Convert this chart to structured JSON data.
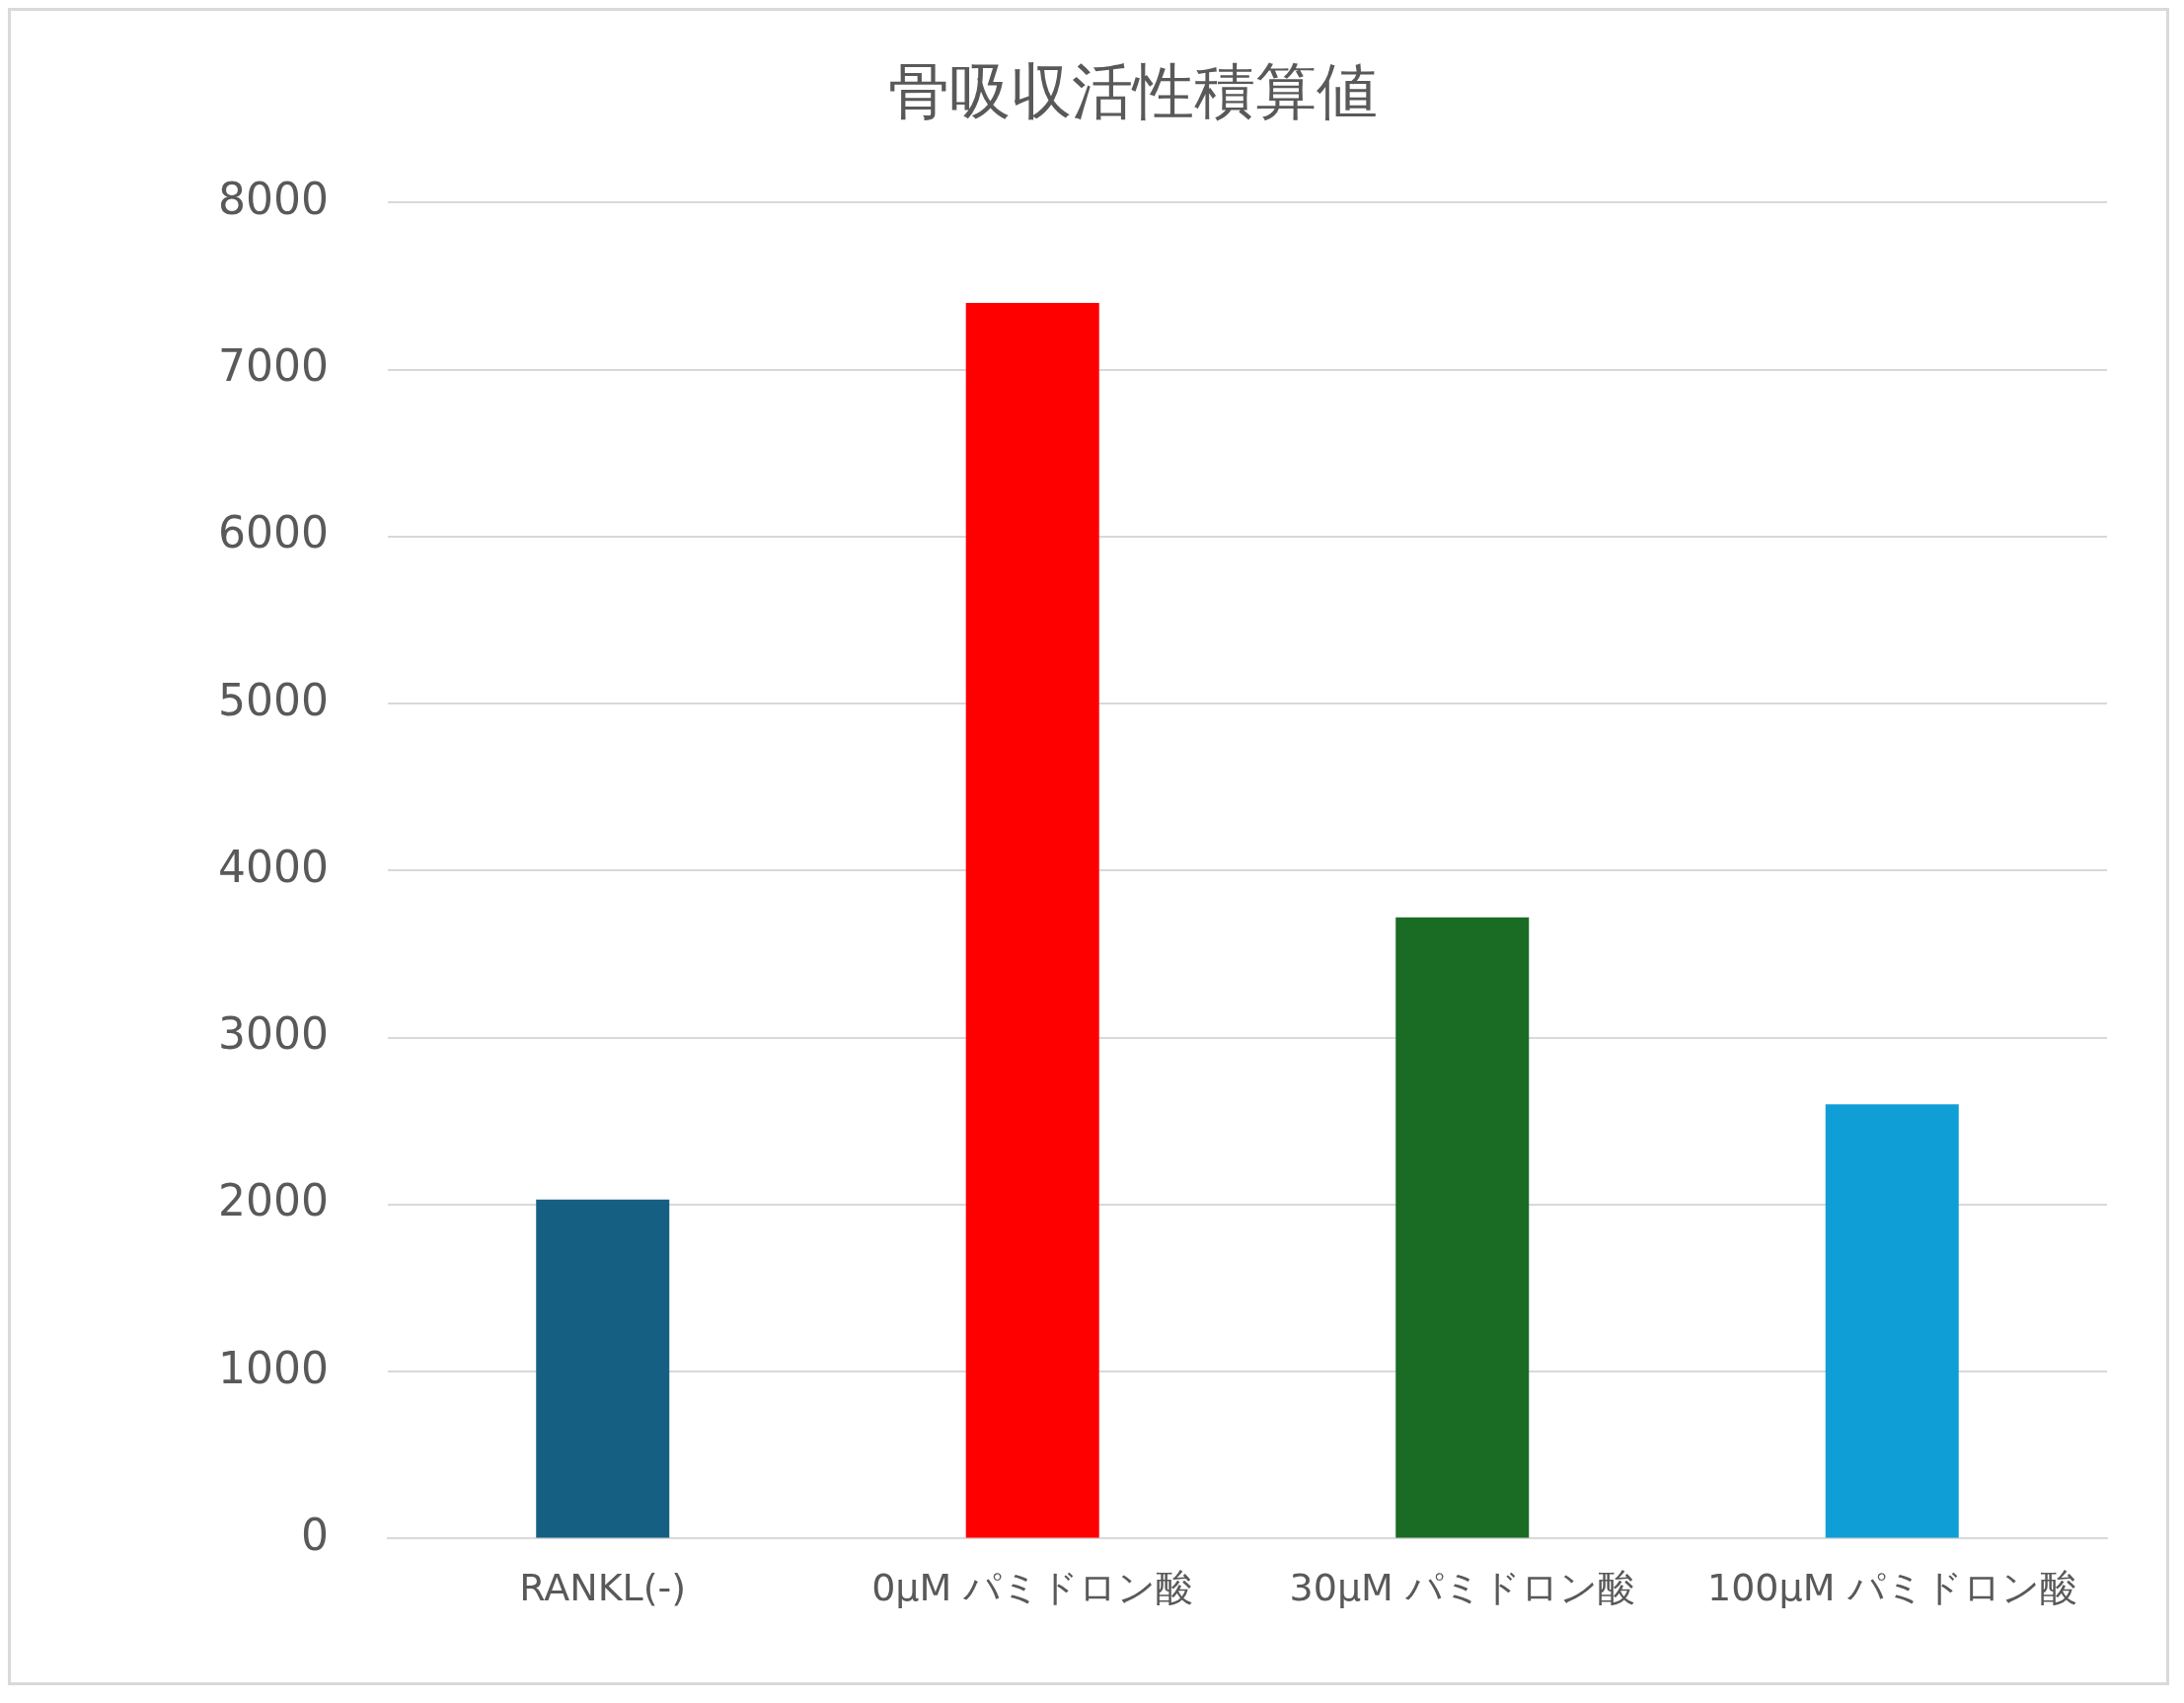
{
  "chart_data": {
    "type": "bar",
    "title": "骨吸収活性積算値",
    "categories": [
      "RANKL(-)",
      "0μM パミドロン酸",
      "30μM パミドロン酸",
      "100μM パミドロン酸"
    ],
    "values": [
      2030,
      7400,
      3720,
      2600
    ],
    "colors": [
      "#156082",
      "#ff0000",
      "#1a6b24",
      "#0f9ed5"
    ],
    "ylim": [
      0,
      8000
    ],
    "yticks": [
      0,
      1000,
      2000,
      3000,
      4000,
      5000,
      6000,
      7000,
      8000
    ],
    "grid": "y"
  }
}
